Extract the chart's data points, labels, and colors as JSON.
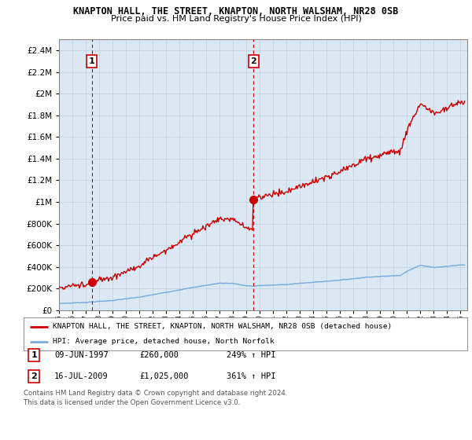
{
  "title1": "KNAPTON HALL, THE STREET, KNAPTON, NORTH WALSHAM, NR28 0SB",
  "title2": "Price paid vs. HM Land Registry's House Price Index (HPI)",
  "legend_line1": "KNAPTON HALL, THE STREET, KNAPTON, NORTH WALSHAM, NR28 0SB (detached house)",
  "legend_line2": "HPI: Average price, detached house, North Norfolk",
  "annotation1_date": "09-JUN-1997",
  "annotation1_price": "£260,000",
  "annotation1_hpi": "249% ↑ HPI",
  "annotation2_date": "16-JUL-2009",
  "annotation2_price": "£1,025,000",
  "annotation2_hpi": "361% ↑ HPI",
  "footnote1": "Contains HM Land Registry data © Crown copyright and database right 2024.",
  "footnote2": "This data is licensed under the Open Government Licence v3.0.",
  "hpi_color": "#7aaadd",
  "price_color": "#cc0000",
  "dashed_vline_color": "#cc0000",
  "chart_bg": "#dde8f5",
  "background_color": "#ffffff",
  "ylim": [
    0,
    2500000
  ],
  "yticks": [
    0,
    200000,
    400000,
    600000,
    800000,
    1000000,
    1200000,
    1400000,
    1600000,
    1800000,
    2000000,
    2200000,
    2400000
  ],
  "sale1_x": 1997.44,
  "sale1_y": 260000,
  "sale2_x": 2009.54,
  "sale2_y": 1025000,
  "xmin": 1995,
  "xmax": 2025.5
}
